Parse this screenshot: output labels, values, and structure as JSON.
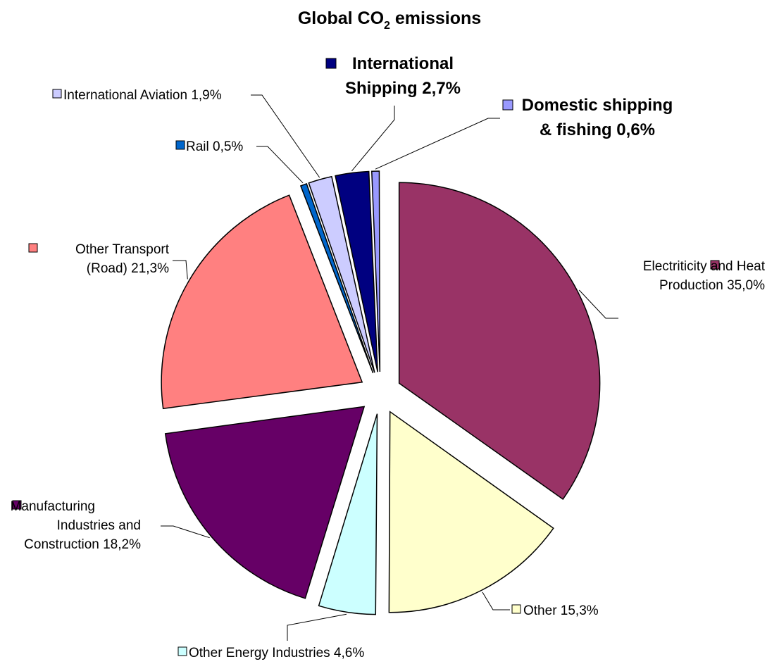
{
  "chart_data": {
    "type": "pie",
    "title": {
      "main": "Global CO",
      "subscript": "2",
      "suffix": " emissions"
    },
    "legend": "none",
    "data_labels": "outside with leader lines",
    "slices": [
      {
        "name": "Electriticity and Heat Production",
        "value": 35.0,
        "label_lines": [
          "Electriticity and Heat",
          "Production 35,0%"
        ],
        "color": "#993366"
      },
      {
        "name": "Other",
        "value": 15.3,
        "label_lines": [
          "Other 15,3%"
        ],
        "color": "#FFFFCC"
      },
      {
        "name": "Other Energy Industries",
        "value": 4.6,
        "label_lines": [
          "Other Energy Industries 4,6%"
        ],
        "color": "#CCFFFF"
      },
      {
        "name": "Manufacturing Industries and Construction",
        "value": 18.2,
        "label_lines": [
          "Manufacturing",
          "Industries and",
          "Construction 18,2%"
        ],
        "color": "#660066"
      },
      {
        "name": "Other Transport (Road)",
        "value": 21.3,
        "label_lines": [
          "Other Transport",
          "(Road) 21,3%"
        ],
        "color": "#FF8080"
      },
      {
        "name": "Rail",
        "value": 0.5,
        "label_lines": [
          "Rail 0,5%"
        ],
        "color": "#0066CC"
      },
      {
        "name": "International Aviation",
        "value": 1.9,
        "label_lines": [
          "International Aviation 1,9%"
        ],
        "color": "#CCCCFF"
      },
      {
        "name": "International Shipping",
        "value": 2.7,
        "label_lines": [
          "International",
          "Shipping 2,7%"
        ],
        "color": "#000080",
        "emphasis": true
      },
      {
        "name": "Domestic shipping & fishing",
        "value": 0.6,
        "label_lines": [
          "Domestic shipping",
          "& fishing 0,6%"
        ],
        "color": "#9999FF",
        "emphasis": true
      }
    ]
  }
}
